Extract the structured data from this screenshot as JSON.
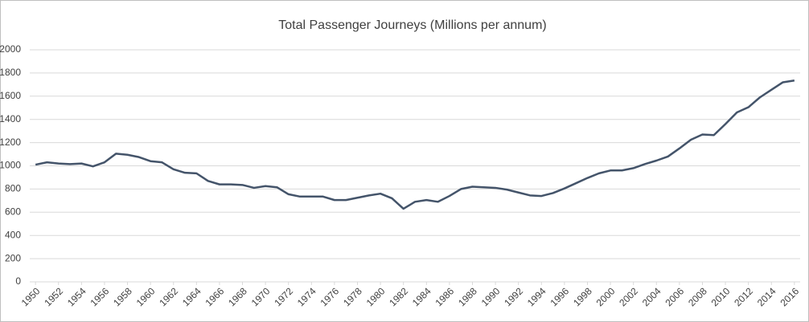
{
  "chart_data": {
    "type": "line",
    "title": "Total Passenger Journeys (Millions per annum)",
    "x": [
      1950,
      1951,
      1952,
      1953,
      1954,
      1955,
      1956,
      1957,
      1958,
      1959,
      1960,
      1961,
      1962,
      1963,
      1964,
      1965,
      1966,
      1967,
      1968,
      1969,
      1970,
      1971,
      1972,
      1973,
      1974,
      1975,
      1976,
      1977,
      1978,
      1979,
      1980,
      1981,
      1982,
      1983,
      1984,
      1985,
      1986,
      1987,
      1988,
      1989,
      1990,
      1991,
      1992,
      1993,
      1994,
      1995,
      1996,
      1997,
      1998,
      1999,
      2000,
      2001,
      2002,
      2003,
      2004,
      2005,
      2006,
      2007,
      2008,
      2009,
      2010,
      2011,
      2012,
      2013,
      2014,
      2015,
      2016
    ],
    "values": [
      1010,
      1030,
      1020,
      1015,
      1020,
      995,
      1030,
      1105,
      1095,
      1075,
      1040,
      1030,
      970,
      940,
      935,
      870,
      840,
      840,
      835,
      810,
      825,
      815,
      755,
      735,
      735,
      735,
      705,
      705,
      725,
      745,
      760,
      720,
      630,
      690,
      705,
      690,
      740,
      800,
      820,
      815,
      810,
      795,
      770,
      745,
      740,
      765,
      805,
      850,
      895,
      935,
      960,
      960,
      980,
      1015,
      1045,
      1080,
      1150,
      1225,
      1270,
      1265,
      1360,
      1460,
      1505,
      1590,
      1655,
      1720,
      1735
    ],
    "color": "#44546a",
    "xlim": [
      1949.5,
      2016.5
    ],
    "xticks": [
      1950,
      1952,
      1954,
      1956,
      1958,
      1960,
      1962,
      1964,
      1966,
      1968,
      1970,
      1972,
      1974,
      1976,
      1978,
      1980,
      1982,
      1984,
      1986,
      1988,
      1990,
      1992,
      1994,
      1996,
      1998,
      2000,
      2002,
      2004,
      2006,
      2008,
      2010,
      2012,
      2014,
      2016
    ],
    "ylim": [
      0,
      2000
    ],
    "yticks": [
      0,
      200,
      400,
      600,
      800,
      1000,
      1200,
      1400,
      1600,
      1800,
      2000
    ],
    "grid": true
  }
}
